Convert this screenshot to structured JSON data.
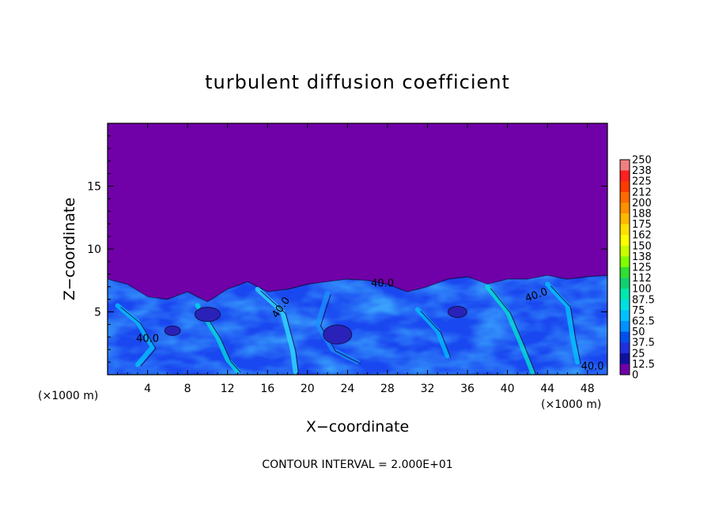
{
  "chart_data": {
    "type": "heatmap",
    "title": "turbulent diffusion coefficient",
    "xlabel": "X−coordinate",
    "ylabel": "Z−coordinate",
    "x_unit_label": "(×1000 m)",
    "z_unit_label": "(×1000 m)",
    "xlim": [
      0,
      50
    ],
    "ylim": [
      0,
      20
    ],
    "x_ticks": [
      4,
      8,
      12,
      16,
      20,
      24,
      28,
      32,
      36,
      40,
      44,
      48
    ],
    "x_tick_labels": [
      "4",
      "8",
      "12",
      "16",
      "20",
      "24",
      "28",
      "32",
      "36",
      "40",
      "44",
      "48"
    ],
    "y_ticks": [
      5,
      10,
      15
    ],
    "y_tick_labels": [
      "5",
      "10",
      "15"
    ],
    "colorbar": {
      "labels": [
        "250",
        "238",
        "225",
        "212",
        "200",
        "188",
        "175",
        "162",
        "150",
        "138",
        "125",
        "112",
        "100",
        "87.5",
        "75",
        "62.5",
        "50",
        "37.5",
        "25",
        "12.5",
        "0"
      ],
      "colors": [
        "#f08080",
        "#ff2020",
        "#ff3a00",
        "#ff6a00",
        "#ff9000",
        "#ffb800",
        "#ffe000",
        "#ffff00",
        "#c8ff00",
        "#80ff00",
        "#30e030",
        "#10d070",
        "#00e8b0",
        "#00e0e0",
        "#00c0ff",
        "#0090ff",
        "#0050f0",
        "#2030e0",
        "#1010a0",
        "#7000a8"
      ]
    },
    "contour_level": 40.0,
    "contour_labels": [
      "40.0",
      "40.0",
      "40.0",
      "40.0",
      "40.0"
    ],
    "background_value": 0,
    "mixed_layer_top_z": [
      7.6,
      7.2,
      6.2,
      6.0,
      6.6,
      5.8,
      6.8,
      7.4,
      6.6,
      6.8,
      7.2,
      7.4,
      7.6,
      7.5,
      7.2,
      6.6,
      7.0,
      7.6,
      7.8,
      7.2,
      7.6,
      7.6,
      7.9,
      7.6,
      7.8,
      7.9
    ],
    "mixed_layer_x": [
      0,
      2,
      4,
      6,
      8,
      10,
      12,
      14,
      16,
      18,
      20,
      22,
      24,
      26,
      28,
      30,
      32,
      34,
      36,
      38,
      40,
      42,
      44,
      46,
      48,
      50
    ],
    "contour_interval_text": "CONTOUR INTERVAL = 2.000E+01"
  }
}
